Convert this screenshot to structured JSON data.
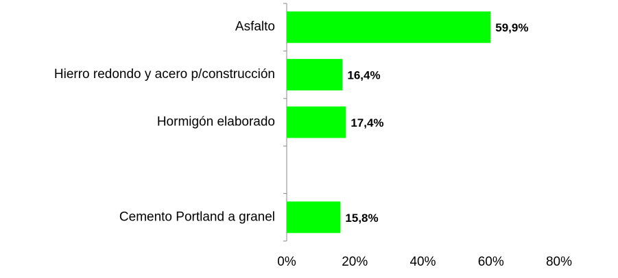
{
  "chart_data": {
    "type": "bar",
    "orientation": "horizontal",
    "categories": [
      "Asfalto",
      "Hierro redondo y acero p/construcción",
      "Hormigón elaborado",
      null,
      "Cemento Portland a granel"
    ],
    "values": [
      59.9,
      16.4,
      17.4,
      null,
      15.8
    ],
    "value_labels": [
      "59,9%",
      "16,4%",
      "17,4%",
      null,
      "15,8%"
    ],
    "color": "#00ff00",
    "xlim": [
      0,
      80
    ],
    "xticks": [
      {
        "value": 0,
        "label": "0%"
      },
      {
        "value": 20,
        "label": "20%"
      },
      {
        "value": 40,
        "label": "40%"
      },
      {
        "value": 60,
        "label": "60%"
      },
      {
        "value": 80,
        "label": "80%"
      }
    ],
    "grid": false
  }
}
